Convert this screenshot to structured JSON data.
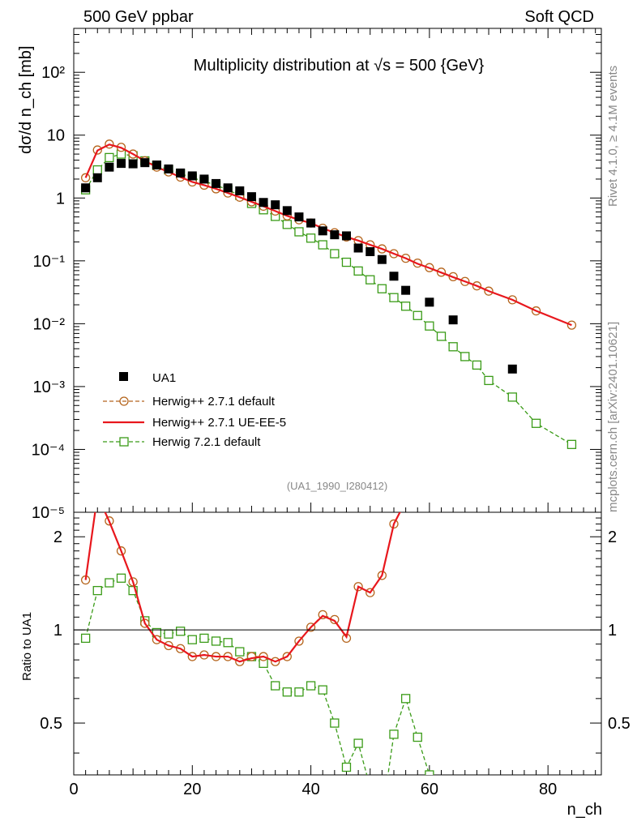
{
  "header": {
    "left_label": "500 GeV ppbar",
    "right_label": "Soft QCD",
    "side_top": "Rivet 4.1.0, ≥ 4.1M events",
    "side_bottom": "mcplots.cern.ch [arXiv:2401.10621]"
  },
  "chart_data": {
    "type": "scatter",
    "title": "Multiplicity distribution at √s = 500 {GeV}",
    "analysis_tag": "(UA1_1990_I280412)",
    "main_panel": {
      "ylabel": "dσ/d n_ch [mb]",
      "yscale": "log",
      "ylim": [
        1e-05,
        500
      ],
      "y_ticks": [
        {
          "value": 100,
          "label": "10²"
        },
        {
          "value": 10,
          "label": "10"
        },
        {
          "value": 1,
          "label": "1"
        },
        {
          "value": 0.1,
          "label": "10⁻¹"
        },
        {
          "value": 0.01,
          "label": "10⁻²"
        },
        {
          "value": 0.001,
          "label": "10⁻³"
        },
        {
          "value": 0.0001,
          "label": "10⁻⁴"
        },
        {
          "value": 1e-05,
          "label": "10⁻⁵"
        }
      ],
      "series": [
        {
          "name": "UA1",
          "style": "marker-square",
          "x": [
            2,
            4,
            6,
            8,
            10,
            12,
            14,
            16,
            18,
            20,
            22,
            24,
            26,
            28,
            30,
            32,
            34,
            36,
            38,
            40,
            42,
            44,
            46,
            48,
            50,
            52,
            54,
            56,
            60,
            64,
            74
          ],
          "y": [
            1.45,
            2.1,
            3.1,
            3.55,
            3.5,
            3.65,
            3.35,
            2.9,
            2.5,
            2.25,
            2.0,
            1.7,
            1.45,
            1.3,
            1.05,
            0.85,
            0.78,
            0.63,
            0.5,
            0.4,
            0.3,
            0.26,
            0.25,
            0.16,
            0.14,
            0.105,
            0.057,
            0.034,
            0.022,
            0.0115,
            0.0019
          ]
        },
        {
          "name": "Herwig++ 2.7.1 default",
          "style": "dashed-circle",
          "x": [
            2,
            4,
            6,
            8,
            10,
            12,
            14,
            16,
            18,
            20,
            22,
            24,
            26,
            28,
            30,
            32,
            34,
            36,
            38,
            40,
            42,
            44,
            46,
            48,
            50,
            52,
            54,
            56,
            58,
            60,
            62,
            64,
            66,
            68,
            70,
            74,
            78,
            84
          ],
          "y": [
            2.1,
            5.8,
            7.2,
            6.4,
            5.0,
            3.9,
            3.1,
            2.6,
            2.15,
            1.8,
            1.6,
            1.4,
            1.2,
            1.03,
            0.87,
            0.74,
            0.62,
            0.52,
            0.45,
            0.4,
            0.33,
            0.28,
            0.24,
            0.21,
            0.18,
            0.155,
            0.13,
            0.11,
            0.092,
            0.078,
            0.066,
            0.056,
            0.047,
            0.04,
            0.033,
            0.024,
            0.016,
            0.0095
          ]
        },
        {
          "name": "Herwig++ 2.7.1 UE-EE-5",
          "style": "solid-line",
          "x": [
            2,
            4,
            6,
            8,
            10,
            12,
            14,
            16,
            18,
            20,
            22,
            24,
            26,
            28,
            30,
            32,
            34,
            36,
            38,
            40,
            42,
            44,
            46,
            48,
            50,
            52,
            54,
            56,
            58,
            60,
            62,
            64,
            66,
            68,
            70,
            74,
            78,
            84
          ],
          "y": [
            2.1,
            5.7,
            7.1,
            6.3,
            5.0,
            3.9,
            3.1,
            2.6,
            2.15,
            1.8,
            1.6,
            1.4,
            1.2,
            1.03,
            0.87,
            0.74,
            0.62,
            0.52,
            0.45,
            0.4,
            0.33,
            0.28,
            0.24,
            0.21,
            0.18,
            0.155,
            0.13,
            0.11,
            0.09,
            0.077,
            0.065,
            0.055,
            0.047,
            0.04,
            0.033,
            0.024,
            0.016,
            0.0095
          ]
        },
        {
          "name": "Herwig 7.2.1 default",
          "style": "dashed-open-square",
          "x": [
            2,
            4,
            6,
            8,
            10,
            12,
            14,
            16,
            18,
            20,
            22,
            24,
            26,
            28,
            30,
            32,
            34,
            36,
            38,
            40,
            42,
            44,
            46,
            48,
            50,
            52,
            54,
            56,
            58,
            60,
            62,
            64,
            66,
            68,
            70,
            74,
            78,
            84
          ],
          "y": [
            1.35,
            2.8,
            4.4,
            5.0,
            4.7,
            3.9,
            3.3,
            2.8,
            2.45,
            2.1,
            1.85,
            1.6,
            1.35,
            1.1,
            0.82,
            0.65,
            0.51,
            0.38,
            0.29,
            0.23,
            0.18,
            0.13,
            0.095,
            0.069,
            0.05,
            0.036,
            0.026,
            0.019,
            0.0135,
            0.0092,
            0.0063,
            0.0043,
            0.003,
            0.0022,
            0.00125,
            0.00068,
            0.00026,
            0.00012
          ]
        }
      ],
      "legend_position": "lower-left"
    },
    "ratio_panel": {
      "ylabel": "Ratio to UA1",
      "yscale": "log",
      "ylim": [
        0.34,
        2.4
      ],
      "reference_line": 1,
      "y_ticks": [
        {
          "value": 0.5,
          "label": "0.5"
        },
        {
          "value": 1,
          "label": "1"
        },
        {
          "value": 2,
          "label": "2"
        }
      ],
      "series": [
        {
          "name": "Herwig++ 2.7.1 default",
          "style": "dashed-circle",
          "x": [
            2,
            4,
            6,
            8,
            10,
            12,
            14,
            16,
            18,
            20,
            22,
            24,
            26,
            28,
            30,
            32,
            34,
            36,
            38,
            40,
            42,
            44,
            46,
            48,
            50,
            52,
            54
          ],
          "y": [
            1.45,
            2.75,
            2.25,
            1.8,
            1.43,
            1.05,
            0.93,
            0.89,
            0.87,
            0.82,
            0.83,
            0.82,
            0.82,
            0.79,
            0.82,
            0.82,
            0.79,
            0.82,
            0.92,
            1.02,
            1.12,
            1.08,
            0.94,
            1.38,
            1.32,
            1.5,
            2.2
          ]
        },
        {
          "name": "Herwig++ 2.7.1 UE-EE-5",
          "style": "solid-line",
          "x": [
            2,
            4,
            6,
            8,
            10,
            12,
            14,
            16,
            18,
            20,
            22,
            24,
            26,
            28,
            30,
            32,
            34,
            36,
            38,
            40,
            42,
            44,
            46,
            48,
            50,
            52,
            54,
            55.5
          ],
          "y": [
            1.45,
            2.72,
            2.24,
            1.8,
            1.43,
            1.05,
            0.93,
            0.89,
            0.87,
            0.82,
            0.83,
            0.82,
            0.82,
            0.79,
            0.81,
            0.82,
            0.79,
            0.82,
            0.92,
            1.02,
            1.11,
            1.07,
            0.95,
            1.38,
            1.32,
            1.5,
            2.2,
            2.5
          ]
        },
        {
          "name": "Herwig 7.2.1 default",
          "style": "dashed-open-square",
          "x": [
            2,
            4,
            6,
            8,
            10,
            12,
            14,
            16,
            18,
            20,
            22,
            24,
            26,
            28,
            30,
            32,
            34,
            36,
            38,
            40,
            42,
            44,
            46,
            48,
            50,
            52,
            54,
            56,
            58,
            60,
            62
          ],
          "y": [
            0.94,
            1.34,
            1.42,
            1.47,
            1.34,
            1.07,
            0.98,
            0.97,
            0.99,
            0.93,
            0.94,
            0.92,
            0.91,
            0.85,
            0.82,
            0.78,
            0.66,
            0.63,
            0.63,
            0.66,
            0.64,
            0.5,
            0.36,
            0.43,
            0.31,
            0.25,
            0.46,
            0.6,
            0.45,
            0.34,
            0.26
          ]
        }
      ]
    },
    "xaxis": {
      "xlabel": "n_ch",
      "xlim": [
        0,
        89
      ],
      "ticks": [
        {
          "value": 0,
          "label": "0"
        },
        {
          "value": 20,
          "label": "20"
        },
        {
          "value": 40,
          "label": "40"
        },
        {
          "value": 60,
          "label": "60"
        },
        {
          "value": 80,
          "label": "80"
        }
      ]
    }
  }
}
